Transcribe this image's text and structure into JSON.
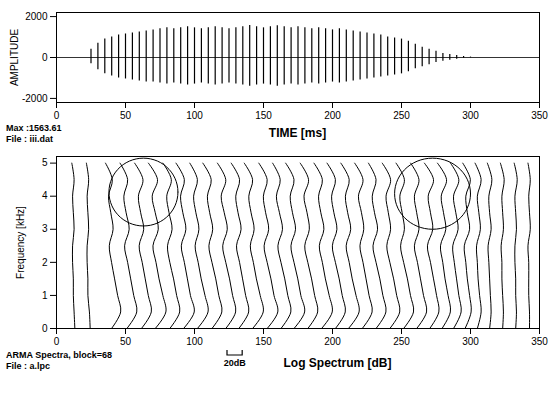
{
  "chart_data": [
    {
      "type": "waveform",
      "ylabel": "AMPLITUDE",
      "xlabel": "TIME [ms]",
      "annotations": [
        "Max :1563.61",
        "File : iii.dat"
      ],
      "color": "#000000",
      "x": [
        0,
        5,
        10,
        15,
        20,
        25,
        30,
        35,
        40,
        45,
        50,
        55,
        60,
        65,
        70,
        75,
        80,
        85,
        90,
        95,
        100,
        105,
        110,
        115,
        120,
        125,
        130,
        135,
        140,
        145,
        150,
        155,
        160,
        165,
        170,
        175,
        180,
        185,
        190,
        195,
        200,
        205,
        210,
        215,
        220,
        225,
        230,
        235,
        240,
        245,
        250,
        255,
        260,
        265,
        270,
        275,
        280,
        285,
        290,
        295,
        300,
        305,
        310,
        315,
        320,
        325,
        330,
        335,
        340,
        345
      ],
      "max": [
        0,
        0,
        0,
        0,
        0,
        400,
        700,
        900,
        1000,
        1100,
        1150,
        1200,
        1250,
        1300,
        1350,
        1400,
        1450,
        1400,
        1450,
        1500,
        1450,
        1400,
        1450,
        1500,
        1450,
        1400,
        1450,
        1500,
        1560,
        1500,
        1450,
        1500,
        1550,
        1500,
        1450,
        1500,
        1450,
        1400,
        1450,
        1400,
        1350,
        1400,
        1350,
        1300,
        1250,
        1200,
        1150,
        1100,
        1000,
        950,
        900,
        800,
        650,
        500,
        400,
        300,
        200,
        150,
        100,
        50,
        20,
        0,
        0,
        0,
        0,
        0,
        0,
        0,
        0,
        0
      ],
      "min": [
        0,
        0,
        0,
        0,
        0,
        -300,
        -600,
        -800,
        -900,
        -1000,
        -1050,
        -1100,
        -1150,
        -1200,
        -1200,
        -1250,
        -1300,
        -1250,
        -1300,
        -1350,
        -1300,
        -1250,
        -1300,
        -1350,
        -1300,
        -1250,
        -1300,
        -1350,
        -1400,
        -1350,
        -1300,
        -1350,
        -1400,
        -1350,
        -1300,
        -1350,
        -1300,
        -1250,
        -1300,
        -1250,
        -1200,
        -1250,
        -1200,
        -1150,
        -1100,
        -1050,
        -1000,
        -950,
        -900,
        -850,
        -800,
        -700,
        -550,
        -450,
        -350,
        -250,
        -180,
        -130,
        -80,
        -40,
        -15,
        0,
        0,
        0,
        0,
        0,
        0,
        0,
        0,
        0
      ],
      "xlim": [
        0,
        350
      ],
      "xticks": [
        0,
        50,
        100,
        150,
        200,
        250,
        300,
        350
      ],
      "ylim": [
        -2200,
        2200
      ],
      "yticks": [
        -2000,
        0,
        2000
      ]
    },
    {
      "type": "waterfall",
      "ylabel": "Frequency [kHz]",
      "xlabel": "Log Spectrum [dB]",
      "annotations": [
        "ARMA Spectra, block=68",
        "File : a.lpc"
      ],
      "scale_bar": {
        "value": 20,
        "label": "20dB"
      },
      "color": "#000000",
      "frequencies": [
        0,
        0.5,
        1,
        1.5,
        2,
        2.5,
        3,
        3.5,
        4,
        4.5,
        5
      ],
      "frames": [
        {
          "time": 10,
          "values": [
            6,
            5,
            4,
            4,
            3,
            3,
            5,
            4,
            3,
            5,
            2
          ]
        },
        {
          "time": 20,
          "values": [
            8,
            7,
            5,
            5,
            4,
            4,
            6,
            5,
            4,
            6,
            3
          ]
        },
        {
          "time": 30,
          "values": [
            18,
            30,
            26,
            22,
            18,
            15,
            20,
            17,
            14,
            19,
            10
          ]
        },
        {
          "time": 40,
          "values": [
            20,
            33,
            29,
            25,
            21,
            17,
            23,
            19,
            16,
            21,
            11
          ]
        },
        {
          "time": 50,
          "values": [
            21,
            34,
            30,
            26,
            22,
            18,
            24,
            20,
            17,
            23,
            12
          ]
        },
        {
          "time": 60,
          "values": [
            21,
            35,
            31,
            26,
            22,
            18,
            25,
            21,
            17,
            24,
            12
          ]
        },
        {
          "time": 70,
          "values": [
            22,
            35,
            31,
            27,
            22,
            19,
            25,
            21,
            18,
            24,
            13
          ]
        },
        {
          "time": 80,
          "values": [
            22,
            36,
            31,
            27,
            23,
            19,
            25,
            21,
            18,
            23,
            12
          ]
        },
        {
          "time": 90,
          "values": [
            22,
            36,
            32,
            27,
            23,
            19,
            24,
            20,
            17,
            22,
            12
          ]
        },
        {
          "time": 100,
          "values": [
            23,
            36,
            32,
            28,
            23,
            19,
            24,
            20,
            17,
            22,
            11
          ]
        },
        {
          "time": 110,
          "values": [
            23,
            36,
            32,
            28,
            23,
            19,
            25,
            21,
            17,
            23,
            12
          ]
        },
        {
          "time": 120,
          "values": [
            22,
            35,
            31,
            27,
            23,
            19,
            25,
            21,
            18,
            23,
            12
          ]
        },
        {
          "time": 130,
          "values": [
            22,
            36,
            32,
            27,
            23,
            19,
            24,
            20,
            17,
            22,
            11
          ]
        },
        {
          "time": 140,
          "values": [
            23,
            37,
            32,
            28,
            23,
            19,
            25,
            21,
            18,
            23,
            12
          ]
        },
        {
          "time": 150,
          "values": [
            23,
            36,
            32,
            28,
            23,
            19,
            25,
            21,
            17,
            22,
            12
          ]
        },
        {
          "time": 160,
          "values": [
            22,
            36,
            31,
            27,
            22,
            18,
            24,
            20,
            17,
            22,
            11
          ]
        },
        {
          "time": 170,
          "values": [
            22,
            35,
            31,
            27,
            22,
            18,
            24,
            21,
            17,
            23,
            12
          ]
        },
        {
          "time": 180,
          "values": [
            22,
            36,
            32,
            27,
            23,
            19,
            25,
            21,
            18,
            23,
            12
          ]
        },
        {
          "time": 190,
          "values": [
            22,
            35,
            31,
            27,
            22,
            18,
            24,
            20,
            17,
            22,
            11
          ]
        },
        {
          "time": 200,
          "values": [
            21,
            35,
            31,
            26,
            22,
            18,
            24,
            20,
            17,
            22,
            11
          ]
        },
        {
          "time": 210,
          "values": [
            21,
            34,
            30,
            26,
            22,
            18,
            23,
            20,
            16,
            22,
            11
          ]
        },
        {
          "time": 220,
          "values": [
            21,
            34,
            30,
            26,
            21,
            17,
            23,
            19,
            16,
            21,
            11
          ]
        },
        {
          "time": 230,
          "values": [
            21,
            34,
            30,
            26,
            21,
            17,
            22,
            19,
            16,
            22,
            11
          ]
        },
        {
          "time": 240,
          "values": [
            21,
            34,
            30,
            26,
            21,
            17,
            22,
            19,
            16,
            22,
            11
          ]
        },
        {
          "time": 250,
          "values": [
            20,
            33,
            29,
            25,
            21,
            17,
            23,
            20,
            17,
            23,
            12
          ]
        },
        {
          "time": 260,
          "values": [
            19,
            31,
            28,
            24,
            20,
            16,
            23,
            20,
            17,
            24,
            12
          ]
        },
        {
          "time": 270,
          "values": [
            17,
            28,
            25,
            21,
            18,
            15,
            22,
            19,
            16,
            23,
            11
          ]
        },
        {
          "time": 280,
          "values": [
            14,
            24,
            21,
            18,
            15,
            13,
            20,
            17,
            14,
            21,
            10
          ]
        },
        {
          "time": 290,
          "values": [
            11,
            19,
            17,
            14,
            12,
            10,
            17,
            14,
            12,
            18,
            8
          ]
        },
        {
          "time": 300,
          "values": [
            9,
            14,
            12,
            10,
            9,
            8,
            13,
            11,
            9,
            14,
            6
          ]
        },
        {
          "time": 310,
          "values": [
            7,
            9,
            8,
            7,
            6,
            5,
            9,
            7,
            6,
            10,
            4
          ]
        },
        {
          "time": 320,
          "values": [
            6,
            7,
            6,
            5,
            5,
            4,
            7,
            6,
            5,
            8,
            3
          ]
        },
        {
          "time": 330,
          "values": [
            5,
            6,
            5,
            5,
            4,
            4,
            6,
            5,
            4,
            7,
            3
          ]
        },
        {
          "time": 340,
          "values": [
            5,
            5,
            4,
            4,
            4,
            3,
            6,
            5,
            4,
            6,
            3
          ]
        }
      ],
      "highlights": [
        {
          "x": [
            38,
            88
          ],
          "y": [
            3.1,
            5.15
          ]
        },
        {
          "x": [
            245,
            300
          ],
          "y": [
            3.0,
            5.15
          ]
        }
      ],
      "xlim": [
        0,
        350
      ],
      "xticks": [
        0,
        50,
        100,
        150,
        200,
        250,
        300,
        350
      ],
      "ylim": [
        0,
        5.2
      ],
      "yticks": [
        0,
        1,
        2,
        3,
        4,
        5
      ]
    }
  ]
}
